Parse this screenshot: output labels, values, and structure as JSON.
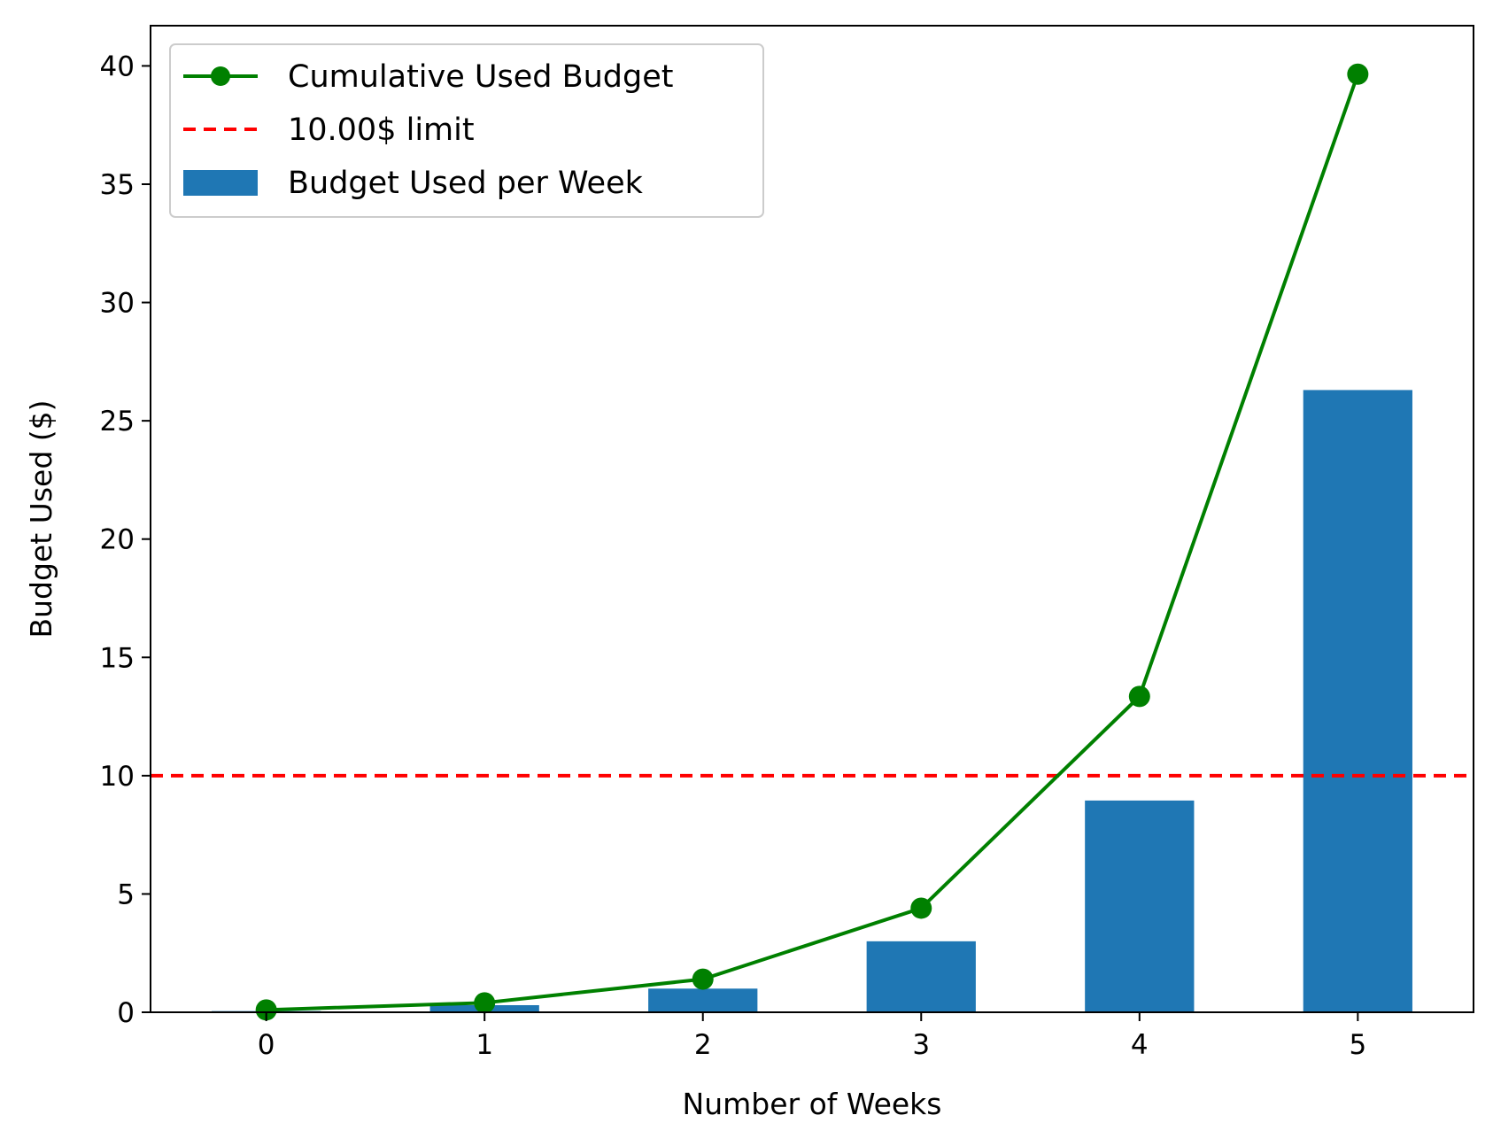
{
  "chart_data": {
    "type": "bar",
    "title": "",
    "xlabel": "Number of Weeks",
    "ylabel": "Budget Used ($)",
    "categories": [
      "0",
      "1",
      "2",
      "3",
      "4",
      "5"
    ],
    "x": [
      0,
      1,
      2,
      3,
      4,
      5
    ],
    "xlim": [
      -0.53,
      5.53
    ],
    "ylim": [
      0,
      41.7
    ],
    "yticks": [
      0,
      5,
      10,
      15,
      20,
      25,
      30,
      35,
      40
    ],
    "grid": false,
    "legend_position": "upper-left",
    "series": [
      {
        "name": "Budget Used per Week",
        "type": "bar",
        "color": "#1f77b4",
        "values": [
          0.05,
          0.3,
          1.0,
          3.0,
          8.95,
          26.3
        ]
      },
      {
        "name": "Cumulative Used Budget",
        "type": "line",
        "marker": "circle",
        "color": "#008000",
        "values": [
          0.1,
          0.4,
          1.4,
          4.4,
          13.35,
          39.65
        ]
      }
    ],
    "reference_lines": [
      {
        "name": "10.00$ limit",
        "axis": "y",
        "value": 10,
        "style": "dashed",
        "color": "#ff0000"
      }
    ]
  }
}
